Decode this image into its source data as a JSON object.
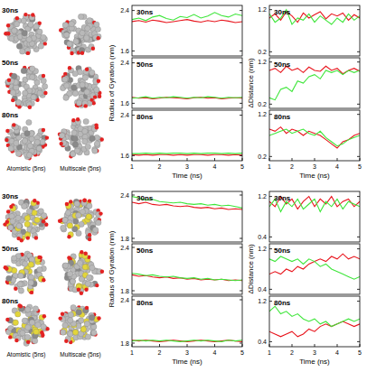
{
  "chart_data": [
    {
      "type": "line",
      "title": "30ns",
      "x": [
        1,
        1.25,
        1.5,
        1.75,
        2,
        2.25,
        2.5,
        2.75,
        3,
        3.25,
        3.5,
        3.75,
        4,
        4.25,
        4.5,
        4.75,
        5
      ],
      "xlim": [
        1,
        5
      ],
      "ylim": [
        1.5,
        2.5
      ],
      "yticks": [
        1.6,
        2.4
      ],
      "tick_labels": "y",
      "series": [
        {
          "color": "#e8141c",
          "values": [
            2.18,
            2.2,
            2.17,
            2.21,
            2.19,
            2.16,
            2.18,
            2.2,
            2.22,
            2.19,
            2.17,
            2.2,
            2.18,
            2.21,
            2.19,
            2.16,
            2.18
          ]
        },
        {
          "color": "#3ee63a",
          "values": [
            2.22,
            2.25,
            2.2,
            2.27,
            2.3,
            2.24,
            2.21,
            2.28,
            2.26,
            2.32,
            2.25,
            2.29,
            2.36,
            2.3,
            2.27,
            2.33,
            2.3
          ]
        }
      ]
    },
    {
      "type": "line",
      "title": "50ns",
      "x": [
        1,
        1.25,
        1.5,
        1.75,
        2,
        2.25,
        2.5,
        2.75,
        3,
        3.25,
        3.5,
        3.75,
        4,
        4.25,
        4.5,
        4.75,
        5
      ],
      "xlim": [
        1,
        5
      ],
      "ylim": [
        1.5,
        2.5
      ],
      "yticks": [
        1.6,
        2.4
      ],
      "tick_labels": "y",
      "ylabel": "Radius of Gyration (nm)",
      "series": [
        {
          "color": "#e8141c",
          "values": [
            1.72,
            1.7,
            1.71,
            1.69,
            1.7,
            1.72,
            1.71,
            1.7,
            1.69,
            1.71,
            1.72,
            1.7,
            1.71,
            1.69,
            1.7,
            1.71,
            1.7
          ]
        },
        {
          "color": "#3ee63a",
          "values": [
            1.7,
            1.71,
            1.73,
            1.7,
            1.72,
            1.71,
            1.73,
            1.72,
            1.7,
            1.72,
            1.71,
            1.73,
            1.72,
            1.7,
            1.72,
            1.71,
            1.72
          ]
        }
      ]
    },
    {
      "type": "line",
      "title": "80ns",
      "x": [
        1,
        1.25,
        1.5,
        1.75,
        2,
        2.25,
        2.5,
        2.75,
        3,
        3.25,
        3.5,
        3.75,
        4,
        4.25,
        4.5,
        4.75,
        5
      ],
      "xlim": [
        1,
        5
      ],
      "xticks": [
        1,
        2,
        3,
        4,
        5
      ],
      "xlabel": "Time (ns)",
      "ylim": [
        1.5,
        2.5
      ],
      "yticks": [
        1.6,
        2.4
      ],
      "series": [
        {
          "color": "#e8141c",
          "values": [
            1.62,
            1.61,
            1.62,
            1.61,
            1.62,
            1.62,
            1.61,
            1.62,
            1.61,
            1.62,
            1.62,
            1.61,
            1.62,
            1.62,
            1.61,
            1.62,
            1.61
          ]
        },
        {
          "color": "#3ee63a",
          "values": [
            1.64,
            1.64,
            1.65,
            1.64,
            1.65,
            1.64,
            1.65,
            1.65,
            1.64,
            1.65,
            1.64,
            1.65,
            1.65,
            1.64,
            1.65,
            1.64,
            1.65
          ]
        }
      ]
    },
    {
      "type": "line",
      "title": "30ns",
      "x": [
        1,
        1.25,
        1.5,
        1.75,
        2,
        2.25,
        2.5,
        2.75,
        3,
        3.25,
        3.5,
        3.75,
        4,
        4.25,
        4.5,
        4.75,
        5
      ],
      "xlim": [
        1,
        5
      ],
      "ylim": [
        0.1,
        1.3
      ],
      "yticks": [
        0.2,
        1.2
      ],
      "tick_labels": "y",
      "series": [
        {
          "color": "#e8141c",
          "values": [
            1.0,
            1.1,
            0.95,
            1.15,
            1.05,
            0.9,
            1.12,
            1.0,
            1.08,
            1.15,
            0.98,
            1.1,
            1.05,
            1.12,
            0.95,
            1.08,
            1.0
          ]
        },
        {
          "color": "#3ee63a",
          "values": [
            1.1,
            0.9,
            1.0,
            1.2,
            0.85,
            1.0,
            0.95,
            1.1,
            0.9,
            1.05,
            0.95,
            0.85,
            1.0,
            0.9,
            1.1,
            0.95,
            1.05
          ]
        }
      ]
    },
    {
      "type": "line",
      "title": "50ns",
      "x": [
        1,
        1.25,
        1.5,
        1.75,
        2,
        2.25,
        2.5,
        2.75,
        3,
        3.25,
        3.5,
        3.75,
        4,
        4.25,
        4.5,
        4.75,
        5
      ],
      "xlim": [
        1,
        5
      ],
      "ylim": [
        0.1,
        1.3
      ],
      "yticks": [
        0.2,
        1.2
      ],
      "tick_labels": "y",
      "ylabel": "ΔDistance (nm)",
      "series": [
        {
          "color": "#e8141c",
          "values": [
            1.0,
            1.05,
            0.95,
            1.1,
            1.0,
            1.05,
            0.95,
            1.08,
            1.0,
            0.98,
            1.1,
            1.0,
            1.05,
            0.92,
            1.0,
            1.05,
            0.98
          ]
        },
        {
          "color": "#3ee63a",
          "values": [
            0.35,
            0.3,
            0.55,
            0.6,
            0.5,
            0.75,
            0.7,
            0.85,
            0.9,
            0.8,
            1.0,
            0.95,
            1.0,
            0.9,
            1.0,
            0.95,
            1.0
          ]
        }
      ]
    },
    {
      "type": "line",
      "title": "80ns",
      "x": [
        1,
        1.25,
        1.5,
        1.75,
        2,
        2.25,
        2.5,
        2.75,
        3,
        3.25,
        3.5,
        3.75,
        4,
        4.25,
        4.5,
        4.75,
        5
      ],
      "xlim": [
        1,
        5
      ],
      "xticks": [
        1,
        2,
        3,
        4,
        5
      ],
      "xlabel": "Time (ns)",
      "ylim": [
        0.1,
        1.3
      ],
      "yticks": [
        0.2,
        1.2
      ],
      "series": [
        {
          "color": "#e8141c",
          "values": [
            0.85,
            0.8,
            0.9,
            0.75,
            0.85,
            0.8,
            0.7,
            0.8,
            0.75,
            0.7,
            0.6,
            0.5,
            0.4,
            0.55,
            0.6,
            0.7,
            0.75
          ]
        },
        {
          "color": "#3ee63a",
          "values": [
            0.7,
            0.75,
            0.8,
            0.85,
            0.75,
            0.8,
            0.85,
            0.75,
            0.7,
            0.8,
            0.65,
            0.55,
            0.45,
            0.5,
            0.6,
            0.65,
            0.7
          ]
        }
      ]
    },
    {
      "type": "line",
      "title": "30ns",
      "x": [
        1,
        1.25,
        1.5,
        1.75,
        2,
        2.25,
        2.5,
        2.75,
        3,
        3.25,
        3.5,
        3.75,
        4,
        4.25,
        4.5,
        4.75,
        5
      ],
      "xlim": [
        1,
        5
      ],
      "ylim": [
        1.75,
        2.45
      ],
      "yticks": [
        1.8,
        2.4
      ],
      "tick_labels": "y",
      "series": [
        {
          "color": "#e8141c",
          "values": [
            2.3,
            2.28,
            2.3,
            2.27,
            2.26,
            2.27,
            2.25,
            2.24,
            2.25,
            2.23,
            2.22,
            2.23,
            2.21,
            2.22,
            2.2,
            2.21,
            2.2
          ]
        },
        {
          "color": "#3ee63a",
          "values": [
            2.38,
            2.36,
            2.33,
            2.34,
            2.31,
            2.3,
            2.29,
            2.3,
            2.28,
            2.27,
            2.28,
            2.26,
            2.27,
            2.25,
            2.26,
            2.24,
            2.22
          ]
        }
      ]
    },
    {
      "type": "line",
      "title": "50ns",
      "x": [
        1,
        1.25,
        1.5,
        1.75,
        2,
        2.25,
        2.5,
        2.75,
        3,
        3.25,
        3.5,
        3.75,
        4,
        4.25,
        4.5,
        4.75,
        5
      ],
      "xlim": [
        1,
        5
      ],
      "ylim": [
        1.75,
        2.45
      ],
      "yticks": [
        1.8,
        2.4
      ],
      "tick_labels": "y",
      "ylabel": "Radius of Gyration (nm)",
      "series": [
        {
          "color": "#e8141c",
          "values": [
            2.02,
            2.0,
            2.01,
            1.99,
            1.98,
            1.99,
            1.97,
            1.98,
            1.96,
            1.97,
            1.95,
            1.96,
            1.95,
            1.96,
            1.94,
            1.95,
            1.94
          ]
        },
        {
          "color": "#3ee63a",
          "values": [
            2.04,
            2.03,
            2.01,
            2.02,
            2.0,
            1.99,
            2.0,
            1.98,
            1.97,
            1.98,
            1.96,
            1.97,
            1.95,
            1.96,
            1.95,
            1.94,
            1.95
          ]
        }
      ]
    },
    {
      "type": "line",
      "title": "80ns",
      "x": [
        1,
        1.25,
        1.5,
        1.75,
        2,
        2.25,
        2.5,
        2.75,
        3,
        3.25,
        3.5,
        3.75,
        4,
        4.25,
        4.5,
        4.75,
        5
      ],
      "xlim": [
        1,
        5
      ],
      "xticks": [
        1,
        2,
        3,
        4,
        5
      ],
      "xlabel": "Time (ns)",
      "ylim": [
        1.75,
        2.45
      ],
      "yticks": [
        1.8,
        2.4
      ],
      "series": [
        {
          "color": "#e8141c",
          "values": [
            1.84,
            1.83,
            1.84,
            1.83,
            1.82,
            1.83,
            1.84,
            1.83,
            1.82,
            1.83,
            1.84,
            1.83,
            1.82,
            1.83,
            1.84,
            1.83,
            1.82
          ]
        },
        {
          "color": "#3ee63a",
          "values": [
            1.83,
            1.84,
            1.83,
            1.84,
            1.83,
            1.84,
            1.83,
            1.82,
            1.83,
            1.84,
            1.83,
            1.84,
            1.83,
            1.82,
            1.84,
            1.83,
            1.84
          ]
        }
      ]
    },
    {
      "type": "line",
      "title": "30ns",
      "x": [
        1,
        1.25,
        1.5,
        1.75,
        2,
        2.25,
        2.5,
        2.75,
        3,
        3.25,
        3.5,
        3.75,
        4,
        4.25,
        4.5,
        4.75,
        5
      ],
      "xlim": [
        1,
        5
      ],
      "ylim": [
        0.3,
        1.3
      ],
      "yticks": [
        0.4,
        1.2
      ],
      "tick_labels": "y",
      "series": [
        {
          "color": "#e8141c",
          "values": [
            1.1,
            1.0,
            1.2,
            1.05,
            1.15,
            0.95,
            1.1,
            1.2,
            1.0,
            1.15,
            1.05,
            1.2,
            1.0,
            1.1,
            1.15,
            1.0,
            1.1
          ]
        },
        {
          "color": "#3ee63a",
          "values": [
            1.0,
            1.15,
            0.9,
            1.1,
            1.0,
            1.15,
            0.95,
            1.05,
            1.15,
            0.9,
            1.1,
            1.0,
            1.15,
            0.95,
            1.1,
            1.05,
            1.0
          ]
        }
      ]
    },
    {
      "type": "line",
      "title": "50ns",
      "x": [
        1,
        1.25,
        1.5,
        1.75,
        2,
        2.25,
        2.5,
        2.75,
        3,
        3.25,
        3.5,
        3.75,
        4,
        4.25,
        4.5,
        4.75,
        5
      ],
      "xlim": [
        1,
        5
      ],
      "ylim": [
        0.3,
        1.3
      ],
      "yticks": [
        0.4,
        1.2
      ],
      "tick_labels": "y",
      "ylabel": "ΔDistance (nm)",
      "series": [
        {
          "color": "#e8141c",
          "values": [
            0.7,
            0.75,
            0.7,
            0.8,
            0.75,
            0.85,
            0.8,
            0.9,
            0.95,
            1.0,
            0.95,
            1.05,
            1.0,
            1.1,
            1.0,
            1.05,
            1.0
          ]
        },
        {
          "color": "#3ee63a",
          "values": [
            1.0,
            0.95,
            1.05,
            1.0,
            0.95,
            1.0,
            0.9,
            1.0,
            0.95,
            0.85,
            0.9,
            0.8,
            0.75,
            0.7,
            0.65,
            0.6,
            0.65
          ]
        }
      ]
    },
    {
      "type": "line",
      "title": "80ns",
      "x": [
        1,
        1.25,
        1.5,
        1.75,
        2,
        2.25,
        2.5,
        2.75,
        3,
        3.25,
        3.5,
        3.75,
        4,
        4.25,
        4.5,
        4.75,
        5
      ],
      "xlim": [
        1,
        5
      ],
      "xticks": [
        1,
        2,
        3,
        4,
        5
      ],
      "xlabel": "Time (ns)",
      "ylim": [
        0.3,
        1.3
      ],
      "yticks": [
        0.4,
        1.2
      ],
      "series": [
        {
          "color": "#e8141c",
          "values": [
            0.6,
            0.55,
            0.5,
            0.55,
            0.6,
            0.5,
            0.55,
            0.65,
            0.6,
            0.7,
            0.75,
            0.7,
            0.75,
            0.8,
            0.75,
            0.7,
            0.75
          ]
        },
        {
          "color": "#3ee63a",
          "values": [
            1.0,
            1.1,
            0.95,
            1.0,
            0.9,
            0.95,
            0.85,
            0.8,
            0.85,
            0.75,
            0.8,
            0.7,
            0.75,
            0.8,
            0.85,
            0.8,
            0.85
          ]
        }
      ]
    }
  ],
  "image_panels": [
    {
      "row_labels": [
        "30ns",
        "50ns",
        "80ns"
      ],
      "column_labels": [
        "Atomistic (5ns)",
        "Multiscale (5ns)"
      ]
    },
    {
      "row_labels": [
        "30ns",
        "50ns",
        "80ns"
      ],
      "column_labels": [
        "Atomistic (5ns)",
        "Multiscale (5ns)"
      ]
    }
  ]
}
